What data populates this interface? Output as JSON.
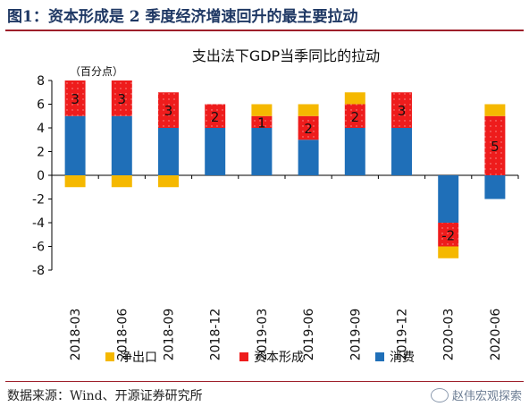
{
  "figure_title": "图1：资本形成是 2 季度经济增速回升的最主要拉动",
  "source_note": "数据来源：Wind、开源证券研究所",
  "watermark": "赵伟宏观探索",
  "chart_data": {
    "type": "bar",
    "stacked": true,
    "title": "支出法下GDP当季同比的拉动",
    "ylabel": "（百分点）",
    "ylim": [
      -8,
      8
    ],
    "yticks": [
      -8,
      -6,
      -4,
      -2,
      0,
      2,
      4,
      6,
      8
    ],
    "grid": false,
    "legend_position": "bottom",
    "categories": [
      "2018-03",
      "2018-06",
      "2018-09",
      "2018-12",
      "2019-03",
      "2019-06",
      "2019-09",
      "2019-12",
      "2020-03",
      "2020-06"
    ],
    "series": [
      {
        "name": "消费",
        "color": "#1f6fb8",
        "values": [
          5,
          5,
          4,
          4,
          4,
          3,
          4,
          4,
          -4,
          -2
        ]
      },
      {
        "name": "资本形成",
        "color": "#ee1c1c",
        "values": [
          3,
          3,
          3,
          2,
          1,
          2,
          2,
          3,
          -2,
          5
        ]
      },
      {
        "name": "净出口",
        "color": "#f5b800",
        "values": [
          -1,
          -1,
          -1,
          0,
          1,
          1,
          1,
          0,
          -1,
          1
        ]
      }
    ],
    "data_labels_series": "资本形成",
    "legend": [
      "净出口",
      "资本形成",
      "消费"
    ]
  }
}
